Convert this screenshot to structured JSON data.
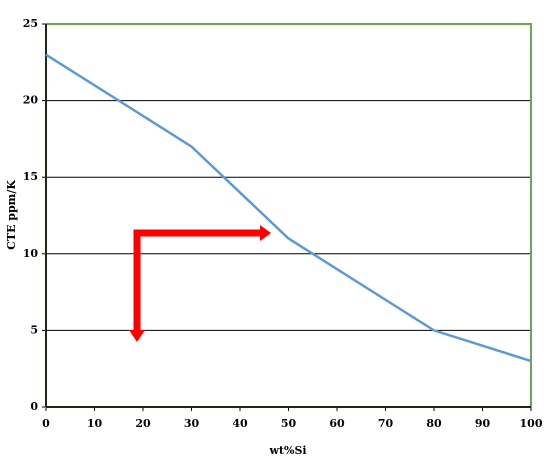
{
  "chart_data": {
    "type": "line",
    "x": [
      0,
      30,
      50,
      80,
      100
    ],
    "series": [
      {
        "name": "CTE",
        "color": "#5b9bd5",
        "values": [
          23,
          17,
          11,
          5,
          3
        ]
      }
    ],
    "xlabel": "wt%Si",
    "ylabel": "CTE ppm/K",
    "xlim": [
      0,
      100
    ],
    "xticks": [
      0,
      10,
      20,
      30,
      40,
      50,
      60,
      70,
      80,
      90,
      100
    ],
    "ylim": [
      0,
      25
    ],
    "yticks": [
      0,
      5,
      10,
      15,
      20,
      25
    ],
    "grid": true,
    "border_color": "#6aa84f"
  }
}
